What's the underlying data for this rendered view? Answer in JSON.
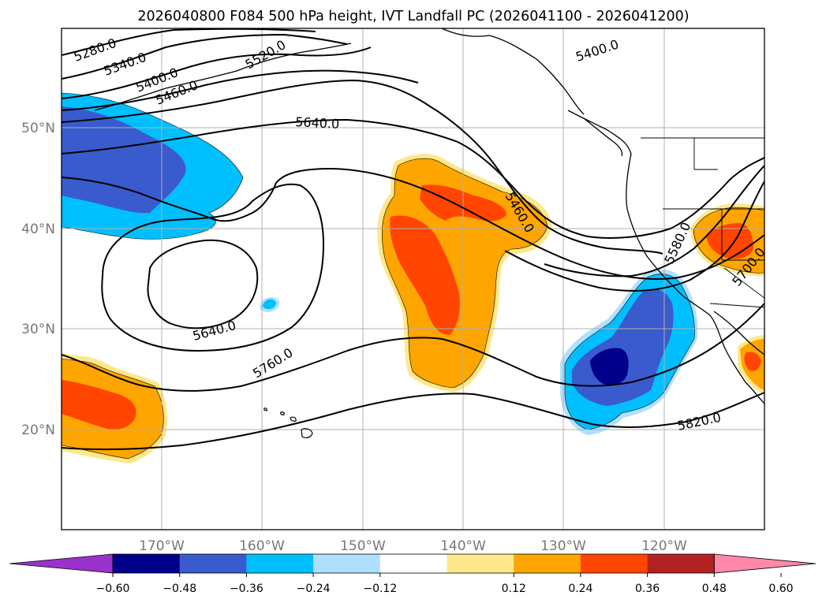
{
  "title": "2026040800 F084 500 hPa height, IVT Landfall PC (2026041100 - 2026041200)",
  "latitude_labels": [
    "50°N",
    "40°N",
    "30°N",
    "20°N"
  ],
  "longitude_labels": [
    "170°W",
    "160°W",
    "150°W",
    "140°W",
    "130°W",
    "120°W"
  ],
  "contour_labels": [
    "5280.0",
    "5340.0",
    "5400.0",
    "5460.0",
    "5520.0",
    "5640.0",
    "5400.0",
    "5460.0",
    "5640.0",
    "5760.0",
    "5580.0",
    "5700.0",
    "5820.0"
  ],
  "colorbar": {
    "tick_labels": [
      "−0.60",
      "−0.48",
      "−0.36",
      "−0.24",
      "−0.12",
      "0.12",
      "0.24",
      "0.36",
      "0.48",
      "0.60"
    ],
    "colors": [
      "#9932CC",
      "#00008B",
      "#3A5BCD",
      "#00BFFF",
      "#B0E0FF",
      "#FFFFFF",
      "#FFE88A",
      "#FFA500",
      "#FF4500",
      "#B22222",
      "#FF88AA"
    ]
  },
  "colors": {
    "dark_blue": "#00008B",
    "medium_blue": "#3A5BCD",
    "sky_blue": "#00BFFF",
    "light_blue": "#B0E0FF",
    "light_yellow": "#FFE88A",
    "orange": "#FFA500",
    "red_orange": "#FF4500",
    "gridline": "#B0B0B0",
    "contour": "#000000"
  }
}
